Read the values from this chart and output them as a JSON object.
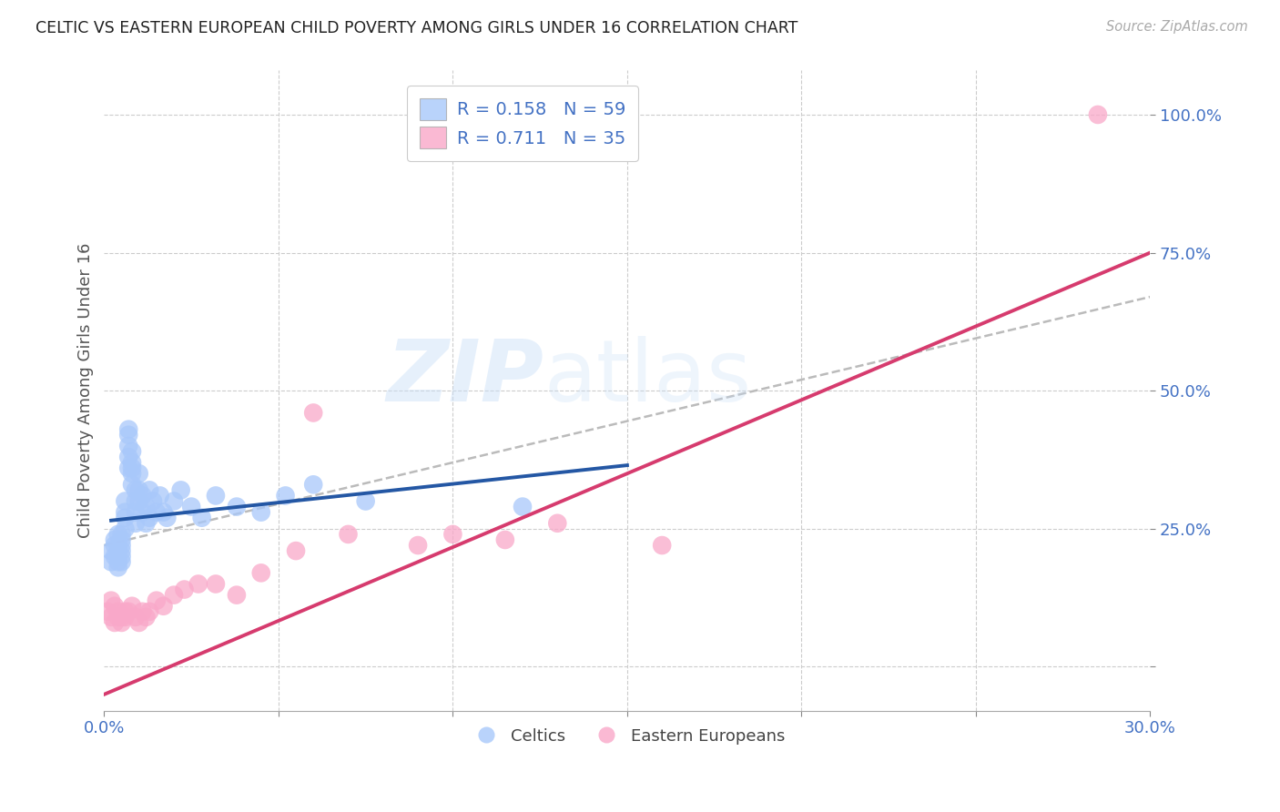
{
  "title": "CELTIC VS EASTERN EUROPEAN CHILD POVERTY AMONG GIRLS UNDER 16 CORRELATION CHART",
  "source": "Source: ZipAtlas.com",
  "ylabel": "Child Poverty Among Girls Under 16",
  "xlim": [
    0.0,
    0.3
  ],
  "ylim": [
    -0.08,
    1.08
  ],
  "yticks": [
    0.0,
    0.25,
    0.5,
    0.75,
    1.0
  ],
  "ytick_labels": [
    "",
    "25.0%",
    "50.0%",
    "75.0%",
    "100.0%"
  ],
  "xtick_labels": [
    "0.0%",
    "",
    "",
    "",
    "",
    "",
    "30.0%"
  ],
  "legend_r_celtic": "0.158",
  "legend_n_celtic": "59",
  "legend_r_eastern": "0.711",
  "legend_n_eastern": "35",
  "celtic_color": "#a8c8fa",
  "eastern_color": "#f9a8c9",
  "celtic_line_color": "#2457a4",
  "eastern_line_color": "#d63b6e",
  "diag_line_color": "#bbbbbb",
  "title_color": "#222222",
  "axis_label_color": "#555555",
  "tick_color": "#4472c4",
  "grid_color": "#cccccc",
  "background_color": "#ffffff",
  "watermark_zip": "ZIP",
  "watermark_atlas": "atlas",
  "celtic_x": [
    0.002,
    0.002,
    0.003,
    0.003,
    0.003,
    0.004,
    0.004,
    0.004,
    0.004,
    0.004,
    0.005,
    0.005,
    0.005,
    0.005,
    0.005,
    0.005,
    0.006,
    0.006,
    0.006,
    0.006,
    0.007,
    0.007,
    0.007,
    0.007,
    0.007,
    0.008,
    0.008,
    0.008,
    0.008,
    0.008,
    0.009,
    0.009,
    0.009,
    0.009,
    0.01,
    0.01,
    0.01,
    0.011,
    0.011,
    0.012,
    0.012,
    0.013,
    0.013,
    0.014,
    0.015,
    0.016,
    0.017,
    0.018,
    0.02,
    0.022,
    0.025,
    0.028,
    0.032,
    0.038,
    0.045,
    0.052,
    0.06,
    0.075,
    0.12
  ],
  "celtic_y": [
    0.19,
    0.21,
    0.23,
    0.2,
    0.22,
    0.19,
    0.21,
    0.24,
    0.18,
    0.22,
    0.24,
    0.21,
    0.19,
    0.23,
    0.2,
    0.22,
    0.28,
    0.25,
    0.27,
    0.3,
    0.4,
    0.42,
    0.38,
    0.43,
    0.36,
    0.35,
    0.37,
    0.39,
    0.36,
    0.33,
    0.3,
    0.32,
    0.28,
    0.26,
    0.32,
    0.35,
    0.3,
    0.28,
    0.31,
    0.26,
    0.29,
    0.32,
    0.27,
    0.3,
    0.28,
    0.31,
    0.28,
    0.27,
    0.3,
    0.32,
    0.29,
    0.27,
    0.31,
    0.29,
    0.28,
    0.31,
    0.33,
    0.3,
    0.29
  ],
  "eastern_x": [
    0.001,
    0.002,
    0.002,
    0.003,
    0.003,
    0.004,
    0.004,
    0.005,
    0.005,
    0.006,
    0.006,
    0.007,
    0.008,
    0.009,
    0.01,
    0.011,
    0.012,
    0.013,
    0.015,
    0.017,
    0.02,
    0.023,
    0.027,
    0.032,
    0.038,
    0.045,
    0.055,
    0.06,
    0.07,
    0.09,
    0.1,
    0.115,
    0.13,
    0.16,
    0.285
  ],
  "eastern_y": [
    0.1,
    0.12,
    0.09,
    0.08,
    0.11,
    0.09,
    0.1,
    0.08,
    0.09,
    0.1,
    0.09,
    0.1,
    0.11,
    0.09,
    0.08,
    0.1,
    0.09,
    0.1,
    0.12,
    0.11,
    0.13,
    0.14,
    0.15,
    0.15,
    0.13,
    0.17,
    0.21,
    0.46,
    0.24,
    0.22,
    0.24,
    0.23,
    0.26,
    0.22,
    1.0
  ],
  "celtic_line_x": [
    0.002,
    0.15
  ],
  "celtic_line_y": [
    0.265,
    0.365
  ],
  "eastern_line_x": [
    0.0,
    0.3
  ],
  "eastern_line_y": [
    -0.05,
    0.75
  ],
  "diag_line_x": [
    0.0,
    0.3
  ],
  "diag_line_y": [
    0.22,
    0.67
  ]
}
